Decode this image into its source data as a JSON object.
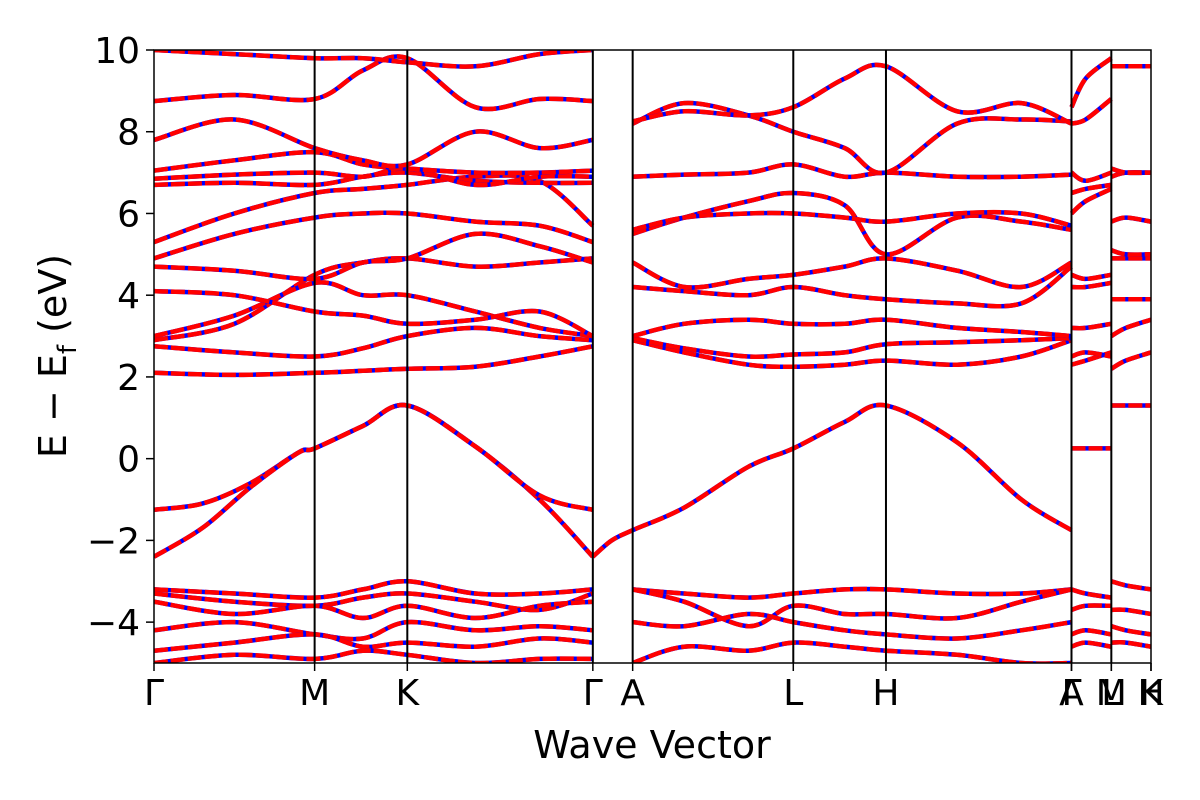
{
  "chart_data": {
    "type": "line",
    "title": "",
    "xlabel": "Wave Vector",
    "ylabel_parts": [
      "E − E",
      "f",
      " (eV)"
    ],
    "ylim": [
      -5,
      10
    ],
    "yticks": [
      {
        "value": 10,
        "label": "10"
      },
      {
        "value": 8,
        "label": "8"
      },
      {
        "value": 6,
        "label": "6"
      },
      {
        "value": 4,
        "label": "4"
      },
      {
        "value": 2,
        "label": "2"
      },
      {
        "value": 0,
        "label": "0"
      },
      {
        "value": -2,
        "label": "−2"
      },
      {
        "value": -4,
        "label": "−4"
      }
    ],
    "kpoints": [
      {
        "label": "Γ",
        "pos": 0.0
      },
      {
        "label": "M",
        "pos": 1.0
      },
      {
        "label": "K",
        "pos": 1.577
      },
      {
        "label": "Γ",
        "pos": 2.732
      },
      {
        "label": "A",
        "pos": 2.98
      },
      {
        "label": "L",
        "pos": 3.98
      },
      {
        "label": "H",
        "pos": 4.557
      },
      {
        "label": "A",
        "pos": 5.712
      },
      {
        "label": "Γ",
        "pos": 5.712
      },
      {
        "label": "L",
        "pos": 5.96
      },
      {
        "label": "M",
        "pos": 5.96
      },
      {
        "label": "K",
        "pos": 6.207
      },
      {
        "label": "H",
        "pos": 6.207
      }
    ],
    "colors": {
      "band_red": "#ff0000",
      "band_blue": "#0000ff"
    },
    "series": [
      {
        "x": [
          0,
          0.3,
          0.6,
          0.9,
          1.0,
          1.3,
          1.577,
          2.0,
          2.4,
          2.732
        ],
        "y": [
          -1.25,
          -1.1,
          -0.6,
          0.15,
          0.25,
          0.8,
          1.3,
          0.3,
          -1.0,
          -2.4
        ]
      },
      {
        "x": [
          0,
          0.3,
          0.6,
          0.9,
          1.0,
          1.3,
          1.577,
          2.0,
          2.4,
          2.732
        ],
        "y": [
          -2.4,
          -1.7,
          -0.7,
          0.15,
          0.25,
          0.8,
          1.3,
          0.3,
          -0.9,
          -1.25
        ]
      },
      {
        "x": [
          2.732,
          2.85,
          2.98,
          3.3,
          3.7,
          3.98,
          4.3,
          4.557,
          5.0,
          5.4,
          5.712
        ],
        "y": [
          -2.4,
          -2.0,
          -1.75,
          -1.2,
          -0.2,
          0.25,
          0.9,
          1.3,
          0.4,
          -1.0,
          -1.75
        ]
      },
      {
        "x": [
          0,
          0.5,
          1.0,
          1.3,
          1.577,
          2.0,
          2.4,
          2.732
        ],
        "y": [
          2.1,
          2.05,
          2.1,
          2.15,
          2.2,
          2.25,
          2.5,
          2.75
        ]
      },
      {
        "x": [
          0,
          0.5,
          1.0,
          1.3,
          1.577,
          2.0,
          2.4,
          2.732
        ],
        "y": [
          2.75,
          2.6,
          2.5,
          2.7,
          3.0,
          3.2,
          3.0,
          2.9
        ]
      },
      {
        "x": [
          0,
          0.5,
          1.0,
          1.3,
          1.577,
          2.0,
          2.4,
          2.732
        ],
        "y": [
          2.9,
          3.3,
          4.5,
          4.8,
          4.9,
          4.7,
          4.8,
          4.9
        ]
      },
      {
        "x": [
          0,
          0.5,
          1.0,
          1.3,
          1.577,
          2.0,
          2.4,
          2.732
        ],
        "y": [
          3.0,
          3.5,
          4.3,
          4.0,
          4.0,
          3.6,
          3.2,
          3.0
        ]
      },
      {
        "x": [
          0,
          0.5,
          1.0,
          1.3,
          1.577,
          2.0,
          2.4,
          2.732
        ],
        "y": [
          4.1,
          4.0,
          3.6,
          3.5,
          3.3,
          3.4,
          3.6,
          3.0
        ]
      },
      {
        "x": [
          0,
          0.5,
          1.0,
          1.3,
          1.577,
          2.0,
          2.4,
          2.732
        ],
        "y": [
          4.7,
          4.6,
          4.4,
          4.8,
          4.9,
          5.5,
          5.2,
          4.8
        ]
      },
      {
        "x": [
          0,
          0.5,
          1.0,
          1.3,
          1.577,
          2.0,
          2.4,
          2.732
        ],
        "y": [
          4.9,
          5.5,
          5.9,
          6.0,
          6.0,
          5.8,
          5.7,
          5.3
        ]
      },
      {
        "x": [
          0,
          0.5,
          1.0,
          1.3,
          1.577,
          2.0,
          2.4,
          2.732
        ],
        "y": [
          5.3,
          6.0,
          6.5,
          6.6,
          6.7,
          6.9,
          6.8,
          5.7
        ]
      },
      {
        "x": [
          0,
          0.5,
          1.0,
          1.3,
          1.577,
          2.0,
          2.4,
          2.732
        ],
        "y": [
          6.7,
          6.75,
          6.7,
          6.9,
          7.0,
          6.8,
          6.75,
          6.75
        ]
      },
      {
        "x": [
          0,
          0.5,
          1.0,
          1.3,
          1.577,
          2.0,
          2.4,
          2.732
        ],
        "y": [
          6.85,
          6.95,
          7.0,
          6.9,
          7.1,
          6.7,
          6.9,
          6.9
        ]
      },
      {
        "x": [
          0,
          0.5,
          1.0,
          1.3,
          1.577,
          2.0,
          2.4,
          2.732
        ],
        "y": [
          7.05,
          7.3,
          7.5,
          7.2,
          7.1,
          7.0,
          7.0,
          7.05
        ]
      },
      {
        "x": [
          0,
          0.5,
          1.0,
          1.3,
          1.577,
          2.0,
          2.4,
          2.732
        ],
        "y": [
          7.8,
          8.3,
          7.6,
          7.3,
          7.2,
          8.0,
          7.6,
          7.8
        ]
      },
      {
        "x": [
          0,
          0.5,
          1.0,
          1.3,
          1.577,
          2.0,
          2.4,
          2.732
        ],
        "y": [
          8.75,
          8.9,
          8.8,
          9.5,
          9.8,
          8.6,
          8.8,
          8.75
        ]
      },
      {
        "x": [
          0,
          0.5,
          1.0,
          1.3,
          1.577,
          2.0,
          2.4,
          2.732
        ],
        "y": [
          10.0,
          9.9,
          9.8,
          9.8,
          9.7,
          9.6,
          9.9,
          10.0
        ]
      },
      {
        "x": [
          2.98,
          3.3,
          3.7,
          3.98,
          4.3,
          4.557,
          5.0,
          5.4,
          5.712
        ],
        "y": [
          2.9,
          2.6,
          2.3,
          2.25,
          2.3,
          2.4,
          2.3,
          2.5,
          2.9
        ]
      },
      {
        "x": [
          2.98,
          3.3,
          3.7,
          3.98,
          4.3,
          4.557,
          5.0,
          5.4,
          5.712
        ],
        "y": [
          2.95,
          2.7,
          2.5,
          2.55,
          2.6,
          2.8,
          2.85,
          2.9,
          2.95
        ]
      },
      {
        "x": [
          2.98,
          3.3,
          3.7,
          3.98,
          4.3,
          4.557,
          5.0,
          5.4,
          5.712
        ],
        "y": [
          3.0,
          3.3,
          3.4,
          3.3,
          3.3,
          3.4,
          3.2,
          3.1,
          3.0
        ]
      },
      {
        "x": [
          2.98,
          3.3,
          3.7,
          3.98,
          4.3,
          4.557,
          5.0,
          5.4,
          5.712
        ],
        "y": [
          4.2,
          4.1,
          4.0,
          4.2,
          4.0,
          3.9,
          3.8,
          3.8,
          4.7
        ]
      },
      {
        "x": [
          2.98,
          3.3,
          3.7,
          3.98,
          4.3,
          4.557,
          5.0,
          5.4,
          5.712
        ],
        "y": [
          4.8,
          4.2,
          4.4,
          4.5,
          4.7,
          4.9,
          4.6,
          4.2,
          4.8
        ]
      },
      {
        "x": [
          2.98,
          3.3,
          3.7,
          3.98,
          4.3,
          4.557,
          5.0,
          5.4,
          5.712
        ],
        "y": [
          5.5,
          5.9,
          6.3,
          6.5,
          6.2,
          5.0,
          5.9,
          5.8,
          5.6
        ]
      },
      {
        "x": [
          2.98,
          3.3,
          3.7,
          3.98,
          4.3,
          4.557,
          5.0,
          5.4,
          5.712
        ],
        "y": [
          5.6,
          5.9,
          6.0,
          6.0,
          5.9,
          5.8,
          6.0,
          6.0,
          5.7
        ]
      },
      {
        "x": [
          2.98,
          3.3,
          3.7,
          3.98,
          4.3,
          4.557,
          5.0,
          5.4,
          5.712
        ],
        "y": [
          6.9,
          6.95,
          7.0,
          7.2,
          6.9,
          7.0,
          6.9,
          6.9,
          6.95
        ]
      },
      {
        "x": [
          2.98,
          3.3,
          3.7,
          3.98,
          4.3,
          4.557,
          5.0,
          5.4,
          5.712
        ],
        "y": [
          8.2,
          8.7,
          8.4,
          8.0,
          7.6,
          7.0,
          8.2,
          8.3,
          8.25
        ]
      },
      {
        "x": [
          2.98,
          3.3,
          3.7,
          3.98,
          4.3,
          4.557,
          5.0,
          5.4,
          5.712
        ],
        "y": [
          8.25,
          8.5,
          8.4,
          8.6,
          9.3,
          9.6,
          8.5,
          8.7,
          8.2
        ]
      },
      {
        "x": [
          0,
          0.5,
          1.0,
          1.3,
          1.577,
          2.0,
          2.4,
          2.732
        ],
        "y": [
          -3.2,
          -3.3,
          -3.4,
          -3.2,
          -3.0,
          -3.3,
          -3.3,
          -3.2
        ]
      },
      {
        "x": [
          0,
          0.5,
          1.0,
          1.3,
          1.577,
          2.0,
          2.4,
          2.732
        ],
        "y": [
          -3.3,
          -3.5,
          -3.6,
          -3.4,
          -3.3,
          -3.5,
          -3.7,
          -3.3
        ]
      },
      {
        "x": [
          0,
          0.5,
          1.0,
          1.3,
          1.577,
          2.0,
          2.4,
          2.732
        ],
        "y": [
          -3.5,
          -3.8,
          -3.6,
          -3.9,
          -3.6,
          -3.9,
          -3.6,
          -3.5
        ]
      },
      {
        "x": [
          0,
          0.5,
          1.0,
          1.3,
          1.577,
          2.0,
          2.4,
          2.732
        ],
        "y": [
          -4.2,
          -4.0,
          -4.3,
          -4.4,
          -4.0,
          -4.2,
          -4.1,
          -4.2
        ]
      },
      {
        "x": [
          0,
          0.5,
          1.0,
          1.3,
          1.577,
          2.0,
          2.4,
          2.732
        ],
        "y": [
          -4.7,
          -4.5,
          -4.3,
          -4.6,
          -4.5,
          -4.6,
          -4.4,
          -4.5
        ]
      },
      {
        "x": [
          0,
          0.5,
          1.0,
          1.3,
          1.577,
          2.0,
          2.4,
          2.732
        ],
        "y": [
          -5.0,
          -4.8,
          -4.9,
          -4.7,
          -4.8,
          -5.0,
          -4.9,
          -4.9
        ]
      },
      {
        "x": [
          2.98,
          3.3,
          3.7,
          3.98,
          4.3,
          4.557,
          5.0,
          5.4,
          5.712
        ],
        "y": [
          -3.2,
          -3.3,
          -3.4,
          -3.3,
          -3.2,
          -3.2,
          -3.3,
          -3.3,
          -3.2
        ]
      },
      {
        "x": [
          2.98,
          3.3,
          3.7,
          3.98,
          4.3,
          4.557,
          5.0,
          5.4,
          5.712
        ],
        "y": [
          -3.2,
          -3.5,
          -4.1,
          -3.6,
          -3.8,
          -3.8,
          -3.9,
          -3.5,
          -3.2
        ]
      },
      {
        "x": [
          2.98,
          3.3,
          3.7,
          3.98,
          4.3,
          4.557,
          5.0,
          5.4,
          5.712
        ],
        "y": [
          -4.0,
          -4.1,
          -3.8,
          -4.0,
          -4.2,
          -4.3,
          -4.4,
          -4.2,
          -4.0
        ]
      },
      {
        "x": [
          2.98,
          3.3,
          3.7,
          3.98,
          4.3,
          4.557,
          5.0,
          5.4,
          5.712
        ],
        "y": [
          -5.0,
          -4.6,
          -4.7,
          -4.5,
          -4.6,
          -4.7,
          -4.8,
          -5.0,
          -5.0
        ]
      },
      {
        "x": [
          5.712,
          5.8,
          5.96
        ],
        "y": [
          0.25,
          0.25,
          0.25
        ]
      },
      {
        "x": [
          5.712,
          5.8,
          5.96
        ],
        "y": [
          2.3,
          2.4,
          2.6
        ]
      },
      {
        "x": [
          5.712,
          5.8,
          5.96
        ],
        "y": [
          2.5,
          2.6,
          2.5
        ]
      },
      {
        "x": [
          5.712,
          5.8,
          5.96
        ],
        "y": [
          3.2,
          3.2,
          3.3
        ]
      },
      {
        "x": [
          5.712,
          5.8,
          5.96
        ],
        "y": [
          4.2,
          4.2,
          4.3
        ]
      },
      {
        "x": [
          5.712,
          5.8,
          5.96
        ],
        "y": [
          4.5,
          4.4,
          4.5
        ]
      },
      {
        "x": [
          5.712,
          5.8,
          5.96
        ],
        "y": [
          6.0,
          6.3,
          6.6
        ]
      },
      {
        "x": [
          5.712,
          5.8,
          5.96
        ],
        "y": [
          6.5,
          6.6,
          6.7
        ]
      },
      {
        "x": [
          5.712,
          5.8,
          5.96
        ],
        "y": [
          7.0,
          6.8,
          7.0
        ]
      },
      {
        "x": [
          5.712,
          5.8,
          5.96
        ],
        "y": [
          8.2,
          8.3,
          8.8
        ]
      },
      {
        "x": [
          5.712,
          5.8,
          5.96
        ],
        "y": [
          8.6,
          9.3,
          9.8
        ]
      },
      {
        "x": [
          5.712,
          5.8,
          5.96
        ],
        "y": [
          -3.2,
          -3.3,
          -3.4
        ]
      },
      {
        "x": [
          5.712,
          5.8,
          5.96
        ],
        "y": [
          -3.7,
          -3.6,
          -3.6
        ]
      },
      {
        "x": [
          5.712,
          5.8,
          5.96
        ],
        "y": [
          -4.3,
          -4.2,
          -4.3
        ]
      },
      {
        "x": [
          5.712,
          5.8,
          5.96
        ],
        "y": [
          -4.6,
          -4.5,
          -4.6
        ]
      },
      {
        "x": [
          5.96,
          6.05,
          6.207
        ],
        "y": [
          1.3,
          1.3,
          1.3
        ]
      },
      {
        "x": [
          5.96,
          6.05,
          6.207
        ],
        "y": [
          2.2,
          2.4,
          2.6
        ]
      },
      {
        "x": [
          5.96,
          6.05,
          6.207
        ],
        "y": [
          3.0,
          3.2,
          3.4
        ]
      },
      {
        "x": [
          5.96,
          6.05,
          6.207
        ],
        "y": [
          3.9,
          3.9,
          3.9
        ]
      },
      {
        "x": [
          5.96,
          6.05,
          6.207
        ],
        "y": [
          4.9,
          4.9,
          4.9
        ]
      },
      {
        "x": [
          5.96,
          6.05,
          6.207
        ],
        "y": [
          5.1,
          5.0,
          5.0
        ]
      },
      {
        "x": [
          5.96,
          6.05,
          6.207
        ],
        "y": [
          5.8,
          5.9,
          5.8
        ]
      },
      {
        "x": [
          5.96,
          6.05,
          6.207
        ],
        "y": [
          6.9,
          7.0,
          7.0
        ]
      },
      {
        "x": [
          5.96,
          6.05,
          6.207
        ],
        "y": [
          7.1,
          7.0,
          7.0
        ]
      },
      {
        "x": [
          5.96,
          6.05,
          6.207
        ],
        "y": [
          9.6,
          9.6,
          9.6
        ]
      },
      {
        "x": [
          5.96,
          6.05,
          6.207
        ],
        "y": [
          -3.0,
          -3.1,
          -3.2
        ]
      },
      {
        "x": [
          5.96,
          6.05,
          6.207
        ],
        "y": [
          -3.7,
          -3.7,
          -3.8
        ]
      },
      {
        "x": [
          5.96,
          6.05,
          6.207
        ],
        "y": [
          -4.1,
          -4.2,
          -4.3
        ]
      },
      {
        "x": [
          5.96,
          6.05,
          6.207
        ],
        "y": [
          -4.5,
          -4.5,
          -4.6
        ]
      }
    ]
  }
}
